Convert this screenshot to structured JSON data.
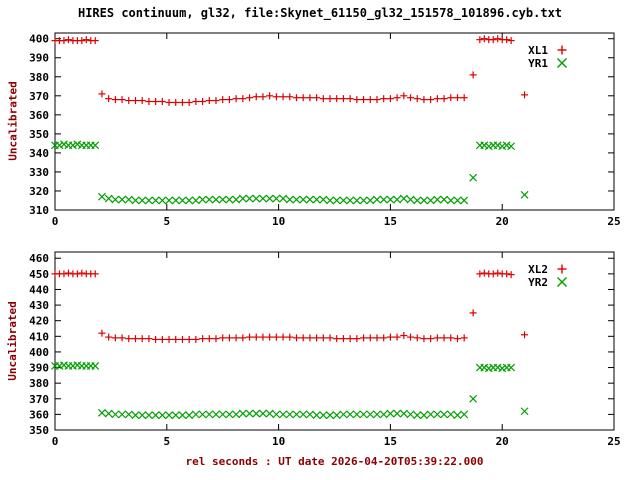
{
  "title": "HIRES continuum, gl32, file:Skynet_61150_gl32_151578_101896.cyb.txt",
  "xlabel": "rel seconds : UT date 2026-04-20T05:39:22.000",
  "colors": {
    "background": "#ffffff",
    "border": "#000000",
    "tick_label": "#000000",
    "axis_label": "#8b0000",
    "series_red": "#dd0000",
    "series_green": "#00a000"
  },
  "chart_data": [
    {
      "type": "scatter",
      "ylabel": "Uncalibrated",
      "xlim": [
        0,
        25
      ],
      "ylim": [
        310,
        403
      ],
      "xticks": [
        0,
        5,
        10,
        15,
        20,
        25
      ],
      "yticks": [
        310,
        320,
        330,
        340,
        350,
        360,
        370,
        380,
        390,
        400
      ],
      "grid": false,
      "legend_position": "inside-top-right",
      "x": [
        0,
        0.2,
        0.4,
        0.6,
        0.8,
        1,
        1.2,
        1.4,
        1.6,
        1.8,
        2.1,
        2.4,
        2.7,
        3,
        3.3,
        3.6,
        3.9,
        4.2,
        4.5,
        4.8,
        5.1,
        5.4,
        5.7,
        6,
        6.3,
        6.6,
        6.9,
        7.2,
        7.5,
        7.8,
        8.1,
        8.4,
        8.7,
        9,
        9.3,
        9.6,
        9.9,
        10.2,
        10.5,
        10.8,
        11.1,
        11.4,
        11.7,
        12,
        12.3,
        12.6,
        12.9,
        13.2,
        13.5,
        13.8,
        14.1,
        14.4,
        14.7,
        15,
        15.3,
        15.6,
        15.9,
        16.2,
        16.5,
        16.8,
        17.1,
        17.4,
        17.7,
        18,
        18.3,
        18.7,
        19,
        19.2,
        19.4,
        19.6,
        19.8,
        20,
        20.2,
        20.4,
        21
      ],
      "series": [
        {
          "name": "XL1",
          "marker": "plus",
          "color": "#dd0000",
          "values": [
            399,
            399,
            399,
            399.5,
            399,
            399,
            399,
            399.5,
            399,
            399,
            371,
            368.5,
            368,
            368,
            367.5,
            367.5,
            367.5,
            367,
            367,
            367,
            366.5,
            366.5,
            366.5,
            366.5,
            367,
            367,
            367.5,
            367.5,
            368,
            368,
            368.5,
            368.5,
            369,
            369.5,
            369.5,
            370,
            369.5,
            369.5,
            369.5,
            369,
            369,
            369,
            369,
            368.5,
            368.5,
            368.5,
            368.5,
            368.5,
            368,
            368,
            368,
            368,
            368.5,
            368.5,
            369,
            370,
            369,
            368.5,
            368,
            368,
            368.5,
            368.5,
            369,
            369,
            369,
            381,
            399.5,
            400,
            399.5,
            399.5,
            400,
            399.5,
            399.5,
            399,
            370.5
          ]
        },
        {
          "name": "YR1",
          "marker": "cross",
          "color": "#00a000",
          "values": [
            344,
            344,
            344.5,
            344,
            344,
            344.5,
            344,
            344,
            344,
            344,
            317,
            316,
            315.5,
            315.5,
            315.5,
            315,
            315,
            315,
            315,
            315,
            315,
            315,
            315,
            315,
            315,
            315.5,
            315.5,
            315.5,
            315.5,
            315.5,
            315.5,
            316,
            316,
            316,
            316,
            316,
            316,
            316,
            315.5,
            315.5,
            315.5,
            315.5,
            315.5,
            315.5,
            315,
            315,
            315,
            315,
            315,
            315,
            315,
            315.5,
            315.5,
            315.5,
            315.5,
            316,
            315.5,
            315,
            315,
            315,
            315.5,
            315.5,
            315,
            315,
            315,
            327,
            344,
            344,
            343.5,
            344,
            344,
            343.5,
            344,
            343.5,
            318
          ]
        }
      ]
    },
    {
      "type": "scatter",
      "ylabel": "Uncalibrated",
      "xlim": [
        0,
        25
      ],
      "ylim": [
        350,
        464
      ],
      "xticks": [
        0,
        5,
        10,
        15,
        20,
        25
      ],
      "yticks": [
        350,
        360,
        370,
        380,
        390,
        400,
        410,
        420,
        430,
        440,
        450,
        460
      ],
      "grid": false,
      "legend_position": "inside-top-right",
      "x": [
        0,
        0.2,
        0.4,
        0.6,
        0.8,
        1,
        1.2,
        1.4,
        1.6,
        1.8,
        2.1,
        2.4,
        2.7,
        3,
        3.3,
        3.6,
        3.9,
        4.2,
        4.5,
        4.8,
        5.1,
        5.4,
        5.7,
        6,
        6.3,
        6.6,
        6.9,
        7.2,
        7.5,
        7.8,
        8.1,
        8.4,
        8.7,
        9,
        9.3,
        9.6,
        9.9,
        10.2,
        10.5,
        10.8,
        11.1,
        11.4,
        11.7,
        12,
        12.3,
        12.6,
        12.9,
        13.2,
        13.5,
        13.8,
        14.1,
        14.4,
        14.7,
        15,
        15.3,
        15.6,
        15.9,
        16.2,
        16.5,
        16.8,
        17.1,
        17.4,
        17.7,
        18,
        18.3,
        18.7,
        19,
        19.2,
        19.4,
        19.6,
        19.8,
        20,
        20.2,
        20.4,
        21
      ],
      "series": [
        {
          "name": "XL2",
          "marker": "plus",
          "color": "#dd0000",
          "values": [
            450,
            450,
            450,
            450.5,
            450,
            450,
            450.5,
            450,
            450,
            450,
            412,
            409.5,
            409,
            409,
            408.5,
            408.5,
            408.5,
            408.5,
            408,
            408,
            408,
            408,
            408,
            408,
            408,
            408.5,
            408.5,
            408.5,
            409,
            409,
            409,
            409,
            409.5,
            409.5,
            409.5,
            409.5,
            409.5,
            409.5,
            409.5,
            409,
            409,
            409,
            409,
            409,
            409,
            408.5,
            408.5,
            408.5,
            408.5,
            409,
            409,
            409,
            409,
            409.5,
            409.5,
            410.5,
            409.5,
            409,
            408.5,
            408.5,
            409,
            409,
            409,
            408.5,
            409,
            425,
            450,
            450.5,
            450,
            450,
            450.5,
            450,
            450,
            449.5,
            411
          ]
        },
        {
          "name": "YR2",
          "marker": "cross",
          "color": "#00a000",
          "values": [
            391,
            391,
            391.5,
            391,
            391,
            391.5,
            391,
            391,
            391,
            391,
            361,
            360.5,
            360,
            360,
            360,
            359.5,
            359.5,
            359.5,
            359.5,
            359.5,
            359.5,
            359.5,
            359.5,
            359.5,
            360,
            360,
            360,
            360,
            360,
            360,
            360,
            360.5,
            360.5,
            360.5,
            360.5,
            360.5,
            360,
            360,
            360,
            360,
            360,
            360,
            359.5,
            359.5,
            359.5,
            359.5,
            360,
            360,
            360,
            360,
            360,
            360,
            360,
            360.5,
            360.5,
            360.5,
            360,
            359.5,
            359.5,
            360,
            360,
            360,
            360,
            359.5,
            360,
            370,
            390,
            390,
            389.5,
            390,
            390,
            389.5,
            390,
            390,
            362
          ]
        }
      ]
    }
  ]
}
